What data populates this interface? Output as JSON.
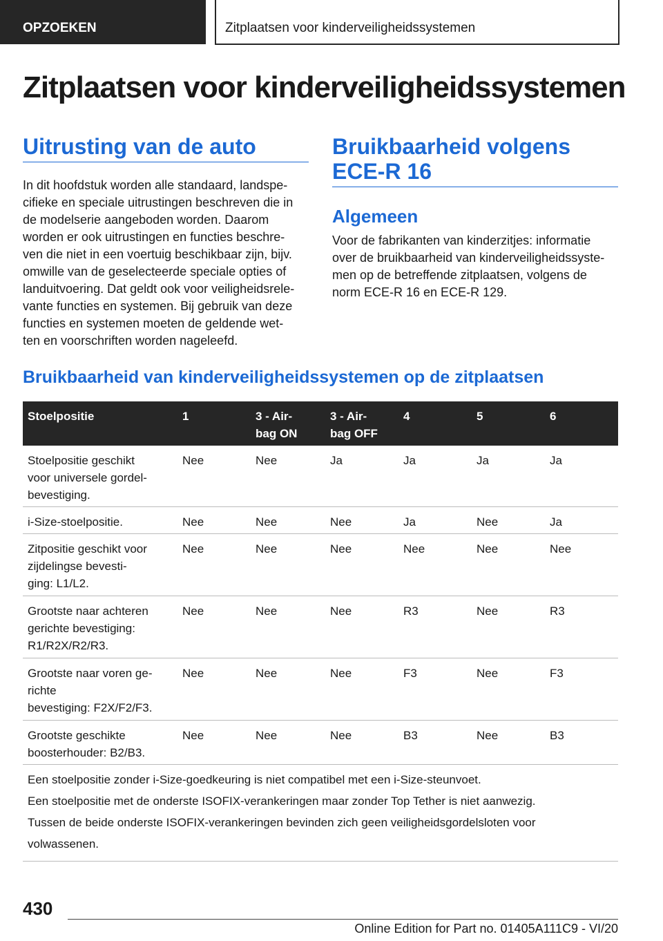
{
  "header": {
    "tab": "OPZOEKEN",
    "breadcrumb": "Zitplaatsen voor kinderveiligheidssystemen"
  },
  "title": "Zitplaatsen voor kinderveiligheidssystemen",
  "left": {
    "heading": "Uitrusting van de auto",
    "paragraph": [
      "In dit hoofdstuk worden alle standaard, landspe-",
      "cifieke en speciale uitrustingen beschreven die in",
      "de modelserie aangeboden worden. Daarom",
      "worden er ook uitrustingen en functies beschre-",
      "ven die niet in een voertuig beschikbaar zijn, bijv.",
      "omwille van de geselecteerde speciale opties of",
      "landuitvoering. Dat geldt ook voor veiligheidsrele-",
      "vante functies en systemen. Bij gebruik van deze",
      "functies en systemen moeten de geldende wet-",
      "ten en voorschriften worden nageleefd."
    ]
  },
  "right": {
    "heading": [
      "Bruikbaarheid volgens",
      "ECE-R 16"
    ],
    "subheading": "Algemeen",
    "paragraph": [
      "Voor de fabrikanten van kinderzitjes: informatie",
      "over de bruikbaarheid van kinderveiligheidssyste-",
      "men op de betreffende zitplaatsen, volgens de",
      "norm ECE-R 16 en ECE-R 129."
    ]
  },
  "section": {
    "heading": "Bruikbaarheid van kinderveiligheidssystemen op de zitplaatsen"
  },
  "table": {
    "header": [
      [
        "Stoelpositie"
      ],
      [
        "1"
      ],
      [
        "3 - Air-",
        "bag ON"
      ],
      [
        "3 - Air-",
        "bag OFF"
      ],
      [
        "4"
      ],
      [
        "5"
      ],
      [
        "6"
      ]
    ],
    "rows": [
      [
        [
          "Stoelpositie geschikt",
          "voor universele gordel-",
          "bevestiging."
        ],
        [
          "Nee"
        ],
        [
          "Nee"
        ],
        [
          "Ja"
        ],
        [
          "Ja"
        ],
        [
          "Ja"
        ],
        [
          "Ja"
        ]
      ],
      [
        [
          "i-Size-stoelpositie."
        ],
        [
          "Nee"
        ],
        [
          "Nee"
        ],
        [
          "Nee"
        ],
        [
          "Ja"
        ],
        [
          "Nee"
        ],
        [
          "Ja"
        ]
      ],
      [
        [
          "Zitpositie geschikt voor",
          "zijdelingse bevesti-",
          "ging: L1/L2."
        ],
        [
          "Nee"
        ],
        [
          "Nee"
        ],
        [
          "Nee"
        ],
        [
          "Nee"
        ],
        [
          "Nee"
        ],
        [
          "Nee"
        ]
      ],
      [
        [
          "Grootste naar achteren",
          "gerichte bevestiging:",
          "R1/R2X/R2/R3."
        ],
        [
          "Nee"
        ],
        [
          "Nee"
        ],
        [
          "Nee"
        ],
        [
          "R3"
        ],
        [
          "Nee"
        ],
        [
          "R3"
        ]
      ],
      [
        [
          "Grootste naar voren ge-",
          "richte",
          "bevestiging: F2X/F2/F3."
        ],
        [
          "Nee"
        ],
        [
          "Nee"
        ],
        [
          "Nee"
        ],
        [
          "F3"
        ],
        [
          "Nee"
        ],
        [
          "F3"
        ]
      ],
      [
        [
          "Grootste geschikte",
          "boosterhouder: B2/B3."
        ],
        [
          "Nee"
        ],
        [
          "Nee"
        ],
        [
          "Nee"
        ],
        [
          "B3"
        ],
        [
          "Nee"
        ],
        [
          "B3"
        ]
      ]
    ],
    "notes": [
      [
        "Een stoelpositie zonder i-Size-goedkeuring is niet compatibel met een i-Size-steunvoet."
      ],
      [
        "Een stoelpositie met de onderste ISOFIX-verankeringen maar zonder Top Tether is niet aanwezig."
      ],
      [
        "Tussen de beide onderste ISOFIX-verankeringen bevinden zich geen veiligheidsgordelsloten voor",
        "volwassenen."
      ]
    ]
  },
  "footer": {
    "page": "430",
    "edition": "Online Edition for Part no. 01405A111C9 - VI/20"
  }
}
